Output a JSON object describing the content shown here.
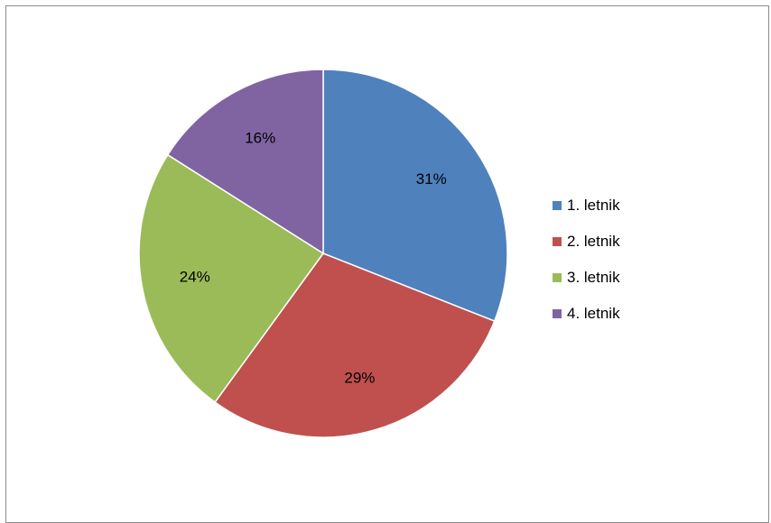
{
  "chart_data": {
    "type": "pie",
    "title": "",
    "categories": [
      "1. letnik",
      "2. letnik",
      "3. letnik",
      "4. letnik"
    ],
    "values": [
      31,
      29,
      24,
      16
    ],
    "labels": [
      "31%",
      "29%",
      "24%",
      "16%"
    ],
    "colors": [
      "#4f81bd",
      "#c0504d",
      "#9bbb59",
      "#8064a2"
    ],
    "legend": "right",
    "start_angle": "top",
    "direction": "clockwise"
  }
}
